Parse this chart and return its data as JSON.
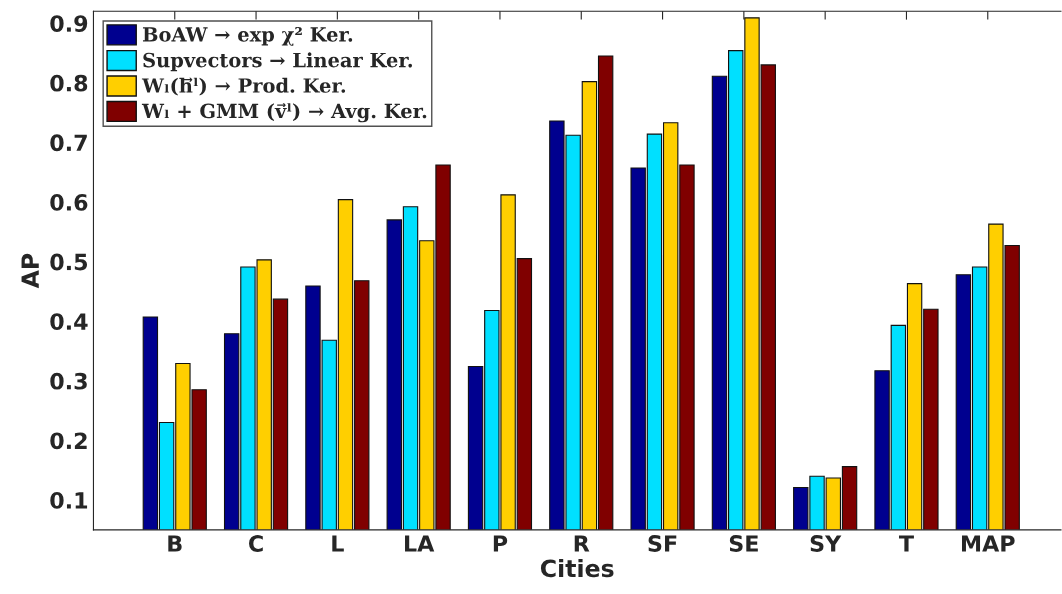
{
  "chart_data": {
    "type": "bar",
    "xlabel": "Cities",
    "ylabel": "AP",
    "categories": [
      "B",
      "C",
      "L",
      "LA",
      "P",
      "R",
      "SF",
      "SE",
      "SY",
      "T",
      "MAP"
    ],
    "series": [
      {
        "name": "BoAW → exp χ² Ker.",
        "color": "#00008f",
        "values": [
          0.407,
          0.379,
          0.459,
          0.57,
          0.324,
          0.736,
          0.657,
          0.811,
          0.121,
          0.317,
          0.478
        ]
      },
      {
        "name": "Supvectors → Linear Ker.",
        "color": "#00e0ff",
        "values": [
          0.23,
          0.491,
          0.368,
          0.592,
          0.418,
          0.712,
          0.714,
          0.854,
          0.14,
          0.393,
          0.491
        ]
      },
      {
        "name": "Wₗ(h⃗ˡ) → Prod. Ker.",
        "color": "#ffcf00",
        "values": [
          0.329,
          0.503,
          0.604,
          0.535,
          0.612,
          0.802,
          0.733,
          0.909,
          0.137,
          0.463,
          0.563
        ]
      },
      {
        "name": "Wₗ + GMM (v⃗ˡ) → Avg. Ker.",
        "color": "#800000",
        "values": [
          0.285,
          0.437,
          0.468,
          0.662,
          0.505,
          0.845,
          0.662,
          0.83,
          0.156,
          0.42,
          0.527
        ]
      }
    ],
    "ylim": [
      0.05,
      0.92
    ],
    "yticks": [
      0.1,
      0.2,
      0.3,
      0.4,
      0.5,
      0.6,
      0.7,
      0.8,
      0.9
    ],
    "grid": false,
    "legend": "top left"
  }
}
